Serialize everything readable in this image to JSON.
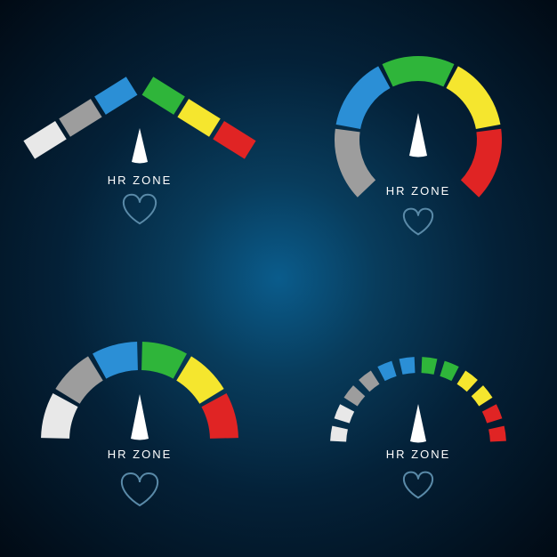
{
  "label_text": "HR ZONE",
  "background_gradient": {
    "center": "#0a5c8c",
    "mid": "#042138",
    "edge": "#010a14"
  },
  "zone_colors": {
    "lightest_gray": "#e8e8e8",
    "gray": "#9d9d9d",
    "blue": "#2b8fd6",
    "green": "#2fb53a",
    "yellow": "#f5e62e",
    "red": "#e02424"
  },
  "pointer_color": "#ffffff",
  "heart_stroke": "#5a8aa8",
  "gauge1": {
    "style": "angular-chevron",
    "segments": [
      {
        "color": "#e8e8e8"
      },
      {
        "color": "#9d9d9d"
      },
      {
        "color": "#2b8fd6"
      },
      {
        "color": "#2fb53a"
      },
      {
        "color": "#f5e62e"
      },
      {
        "color": "#e02424"
      }
    ],
    "segment_gap_deg": 3,
    "thickness": 24,
    "label": "HR ZONE"
  },
  "gauge2": {
    "style": "donut",
    "start_deg": -225,
    "end_deg": 45,
    "radius": 80,
    "thickness": 28,
    "gap_deg": 3,
    "segments": [
      {
        "color": "#9d9d9d"
      },
      {
        "color": "#2b8fd6"
      },
      {
        "color": "#2fb53a"
      },
      {
        "color": "#f5e62e"
      },
      {
        "color": "#e02424"
      }
    ],
    "label": "HR ZONE"
  },
  "gauge3": {
    "style": "semicircle",
    "start_deg": -180,
    "end_deg": 0,
    "radius": 95,
    "thickness": 32,
    "gap_deg": 3,
    "segments": [
      {
        "color": "#e8e8e8"
      },
      {
        "color": "#9d9d9d"
      },
      {
        "color": "#2b8fd6"
      },
      {
        "color": "#2fb53a"
      },
      {
        "color": "#f5e62e"
      },
      {
        "color": "#e02424"
      }
    ],
    "label": "HR ZONE"
  },
  "gauge4": {
    "style": "dashed-semicircle",
    "start_deg": -180,
    "end_deg": 0,
    "radius": 90,
    "thickness": 18,
    "segments_per_zone": 2,
    "gap_deg": 5,
    "zones": [
      {
        "color": "#e8e8e8"
      },
      {
        "color": "#9d9d9d"
      },
      {
        "color": "#2b8fd6"
      },
      {
        "color": "#2fb53a"
      },
      {
        "color": "#f5e62e"
      },
      {
        "color": "#e02424"
      }
    ],
    "label": "HR ZONE"
  }
}
